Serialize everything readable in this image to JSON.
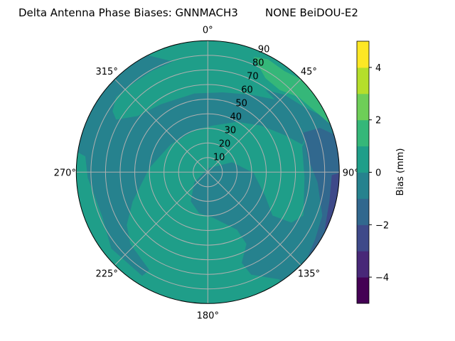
{
  "chart_data": {
    "type": "polar-contour",
    "title": "Delta Antenna Phase Biases: GNNMACH3        NONE BeiDOU-E2",
    "angular_ticks": [
      "0°",
      "45°",
      "90°",
      "135°",
      "180°",
      "225°",
      "270°",
      "315°"
    ],
    "angular_direction": "clockwise, 0° at top",
    "radial_ticks": [
      "10",
      "20",
      "30",
      "40",
      "50",
      "60",
      "70",
      "80",
      "90"
    ],
    "radial_range": [
      0,
      90
    ],
    "grid": true,
    "colorbar": {
      "label": "Bias (mm)",
      "range": [
        -5,
        5
      ],
      "ticks": [
        "−4",
        "−2",
        "0",
        "2",
        "4"
      ],
      "tick_values": [
        -4,
        -2,
        0,
        2,
        4
      ],
      "levels": [
        -5,
        -4,
        -3,
        -2,
        -1,
        0,
        1,
        2,
        3,
        4,
        5
      ],
      "colormap": "viridis",
      "band_colors": [
        "#440154",
        "#482878",
        "#3e4989",
        "#31688e",
        "#26828e",
        "#1f9e89",
        "#35b779",
        "#6ece58",
        "#b5de2b",
        "#fde725"
      ]
    },
    "regions": [
      {
        "range": [
          0,
          1
        ],
        "description": "background over most of the disc"
      },
      {
        "range": [
          -1,
          0
        ],
        "description": "swirling band around the middle and a blob southeast of center"
      },
      {
        "range": [
          1,
          2
        ],
        "description": "near the edge at the northeast (30°–60°)"
      },
      {
        "range": [
          -2,
          -1
        ],
        "description": "eastern edge (70°–130°)"
      },
      {
        "range": [
          -3,
          -2
        ],
        "description": "narrow strip at the eastern edge (about 95°–115°)"
      }
    ]
  }
}
